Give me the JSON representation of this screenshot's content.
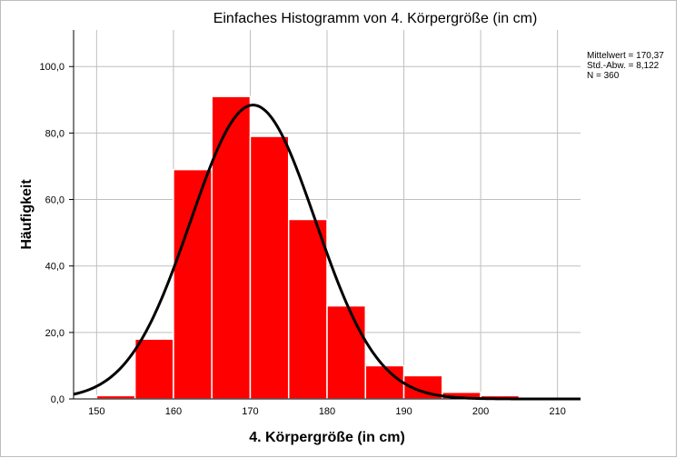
{
  "chart_data": {
    "type": "bar",
    "title": "Einfaches Histogramm  von 4. Körpergröße (in cm)",
    "xlabel": "4. Körpergröße (in cm)",
    "ylabel": "Häufigkeit",
    "xlim": [
      147,
      213
    ],
    "ylim": [
      0,
      111
    ],
    "x_ticks": [
      150,
      160,
      170,
      180,
      190,
      200,
      210
    ],
    "y_ticks": [
      0,
      20,
      40,
      60,
      80,
      100
    ],
    "y_tick_labels": [
      "0,0",
      "20,0",
      "40,0",
      "60,0",
      "80,0",
      "100,0"
    ],
    "grid": true,
    "bin_width": 5,
    "bins": [
      {
        "start": 150,
        "end": 155,
        "count": 1
      },
      {
        "start": 155,
        "end": 160,
        "count": 18
      },
      {
        "start": 160,
        "end": 165,
        "count": 69
      },
      {
        "start": 165,
        "end": 170,
        "count": 91
      },
      {
        "start": 170,
        "end": 175,
        "count": 79
      },
      {
        "start": 175,
        "end": 180,
        "count": 54
      },
      {
        "start": 180,
        "end": 185,
        "count": 28
      },
      {
        "start": 185,
        "end": 190,
        "count": 10
      },
      {
        "start": 190,
        "end": 195,
        "count": 7
      },
      {
        "start": 195,
        "end": 200,
        "count": 2
      },
      {
        "start": 200,
        "end": 205,
        "count": 1
      }
    ],
    "normal_curve": {
      "mean": 170.37,
      "sd": 8.122,
      "n": 360
    },
    "stats_box": [
      "Mittelwert = 170,37",
      "Std.-Abw. = 8,122",
      "N = 360"
    ],
    "colors": {
      "bar": "#ff0000",
      "bar_edge": "#ffffff",
      "curve": "#000000",
      "grid": "#bfbfbf",
      "axis": "#000000"
    }
  }
}
